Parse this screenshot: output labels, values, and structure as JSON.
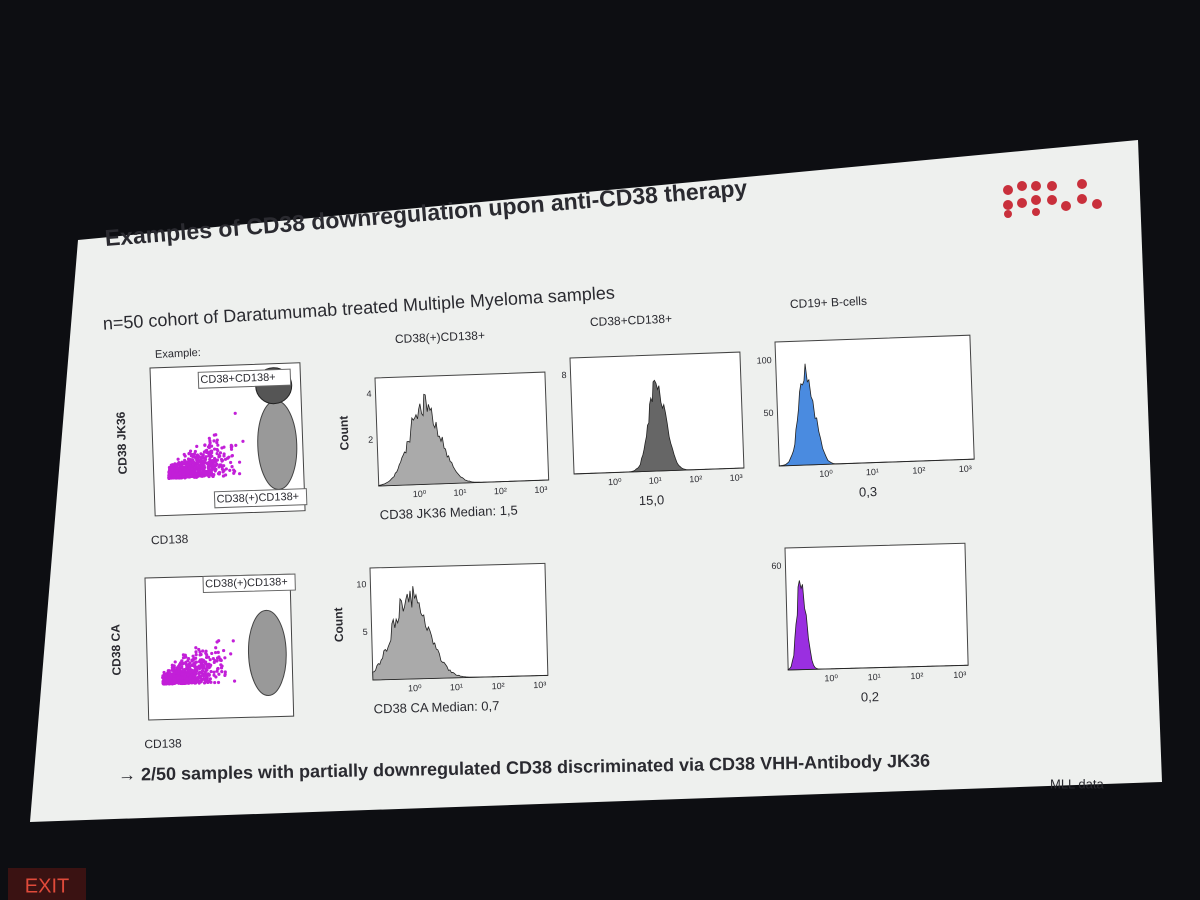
{
  "slide": {
    "title": "Examples of CD38 downregulation upon anti-CD38 therapy",
    "subtitle": "n=50 cohort of Daratumumab treated Multiple Myeloma samples",
    "example_label": "Example:",
    "column_headers": [
      "CD38(+)CD138+",
      "CD38+CD138+",
      "CD19+ B-cells"
    ],
    "conclusion": "→ 2/50 samples with partially downregulated CD38 discriminated via CD38 VHH-Antibody JK36",
    "source": "MLL data"
  },
  "scatter_plots": [
    {
      "y_label": "CD38 JK36",
      "x_label": "CD138",
      "gates": [
        "CD38+CD138+",
        "CD38(+)CD138+"
      ]
    },
    {
      "y_label": "CD38 CA",
      "x_label": "CD138",
      "gates": [
        "CD38(+)CD138+"
      ]
    }
  ],
  "histograms": [
    {
      "y_label": "Count",
      "y_ticks": [
        "2",
        "4"
      ],
      "x_ticks": [
        "10⁰",
        "10¹",
        "10²",
        "10³"
      ],
      "caption": "CD38 JK36 Median: 1,5"
    },
    {
      "y_ticks": [
        "8"
      ],
      "x_ticks": [
        "10⁰",
        "10¹",
        "10²",
        "10³"
      ],
      "caption": "15,0"
    },
    {
      "y_ticks": [
        "50",
        "100"
      ],
      "x_ticks": [
        "10⁰",
        "10¹",
        "10²",
        "10³"
      ],
      "caption": "0,3"
    },
    {
      "y_label": "Count",
      "y_ticks": [
        "5",
        "10"
      ],
      "x_ticks": [
        "10⁰",
        "10¹",
        "10²",
        "10³"
      ],
      "caption": "CD38 CA Median: 0,7"
    },
    {
      "y_ticks": [
        "60"
      ],
      "x_ticks": [
        "10⁰",
        "10¹",
        "10²",
        "10³"
      ],
      "caption": "0,2"
    }
  ],
  "exit_sign": "EXIT"
}
